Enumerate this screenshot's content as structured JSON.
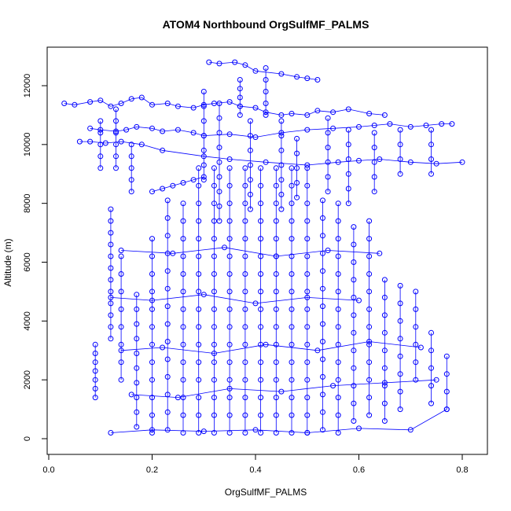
{
  "chart_data": {
    "type": "scatter",
    "title": "ATOM4 Northbound OrgSulfMF_PALMS",
    "xlabel": "OrgSulfMF_PALMS",
    "ylabel": "Altitude (m)",
    "xlim": [
      0.0,
      0.8
    ],
    "ylim": [
      0,
      12000
    ],
    "x_ticks": [
      0.0,
      0.2,
      0.4,
      0.6,
      0.8
    ],
    "x_tick_labels": [
      "0.0",
      "0.2",
      "0.4",
      "0.6",
      "0.8"
    ],
    "y_ticks": [
      0,
      2000,
      4000,
      6000,
      8000,
      10000,
      12000
    ],
    "y_tick_labels": [
      "0",
      "2000",
      "4000",
      "6000",
      "8000",
      "10000",
      "12000"
    ],
    "marker": "open-circle",
    "connect_points": true,
    "grid": false,
    "legend": "none",
    "color": "#0000ff",
    "series": [
      {
        "x": [
          0.03,
          0.05,
          0.08,
          0.1,
          0.12,
          0.14,
          0.16,
          0.18,
          0.2,
          0.23,
          0.25,
          0.28,
          0.3,
          0.32,
          0.35,
          0.37,
          0.4,
          0.42,
          0.45,
          0.47,
          0.5,
          0.52,
          0.55,
          0.58,
          0.62,
          0.65
        ],
        "y": [
          11400,
          11350,
          11450,
          11500,
          11300,
          11400,
          11550,
          11600,
          11350,
          11400,
          11300,
          11250,
          11350,
          11400,
          11450,
          11300,
          11250,
          11100,
          11000,
          11050,
          11000,
          11150,
          11100,
          11200,
          11050,
          11000
        ]
      },
      {
        "x": [
          0.31,
          0.33,
          0.36,
          0.38,
          0.4,
          0.45,
          0.48,
          0.5,
          0.52
        ],
        "y": [
          12800,
          12750,
          12800,
          12700,
          12500,
          12400,
          12300,
          12250,
          12200
        ]
      },
      {
        "x": [
          0.08,
          0.1,
          0.13,
          0.15,
          0.17,
          0.2,
          0.22,
          0.25,
          0.28,
          0.3,
          0.35,
          0.4,
          0.45,
          0.5,
          0.55,
          0.6,
          0.63,
          0.66,
          0.7,
          0.73,
          0.76,
          0.78
        ],
        "y": [
          10550,
          10500,
          10450,
          10500,
          10600,
          10550,
          10450,
          10500,
          10400,
          10300,
          10350,
          10250,
          10400,
          10500,
          10550,
          10600,
          10650,
          10700,
          10600,
          10650,
          10700,
          10700
        ]
      },
      {
        "x": [
          0.06,
          0.08,
          0.11,
          0.14,
          0.18,
          0.22,
          0.3,
          0.35,
          0.42,
          0.5,
          0.56,
          0.6,
          0.64,
          0.7,
          0.75,
          0.8
        ],
        "y": [
          10100,
          10100,
          10050,
          10100,
          10000,
          9800,
          9600,
          9500,
          9400,
          9300,
          9400,
          9450,
          9500,
          9400,
          9350,
          9400
        ]
      },
      {
        "x": [
          0.12,
          0.12,
          0.12,
          0.12,
          0.12,
          0.12,
          0.12,
          0.12,
          0.12,
          0.12,
          0.12,
          0.12
        ],
        "y": [
          3400,
          3800,
          4200,
          4600,
          5000,
          5400,
          5800,
          6200,
          6600,
          7000,
          7400,
          7800
        ]
      },
      {
        "x": [
          0.09,
          0.09,
          0.09,
          0.09,
          0.09,
          0.09,
          0.09
        ],
        "y": [
          1400,
          1700,
          2000,
          2300,
          2600,
          2900,
          3200
        ]
      },
      {
        "x": [
          0.14,
          0.14,
          0.14,
          0.14,
          0.14,
          0.14,
          0.14,
          0.14
        ],
        "y": [
          2000,
          2600,
          3200,
          3800,
          4400,
          5000,
          5600,
          6200
        ]
      },
      {
        "x": [
          0.17,
          0.17,
          0.17,
          0.17,
          0.17,
          0.17,
          0.17,
          0.17,
          0.17,
          0.17
        ],
        "y": [
          400,
          900,
          1400,
          1900,
          2400,
          2900,
          3400,
          3900,
          4400,
          4900
        ]
      },
      {
        "x": [
          0.2,
          0.2,
          0.2,
          0.2,
          0.2,
          0.2,
          0.2,
          0.2,
          0.2,
          0.2,
          0.2,
          0.2
        ],
        "y": [
          200,
          800,
          1400,
          2000,
          2600,
          3200,
          3800,
          4400,
          5000,
          5600,
          6200,
          6800
        ]
      },
      {
        "x": [
          0.23,
          0.23,
          0.23,
          0.23,
          0.23,
          0.23,
          0.23,
          0.23,
          0.23,
          0.23,
          0.23,
          0.23,
          0.23,
          0.23
        ],
        "y": [
          300,
          900,
          1500,
          2100,
          2700,
          3300,
          3900,
          4500,
          5100,
          5700,
          6300,
          6900,
          7500,
          8100
        ]
      },
      {
        "x": [
          0.26,
          0.26,
          0.26,
          0.26,
          0.26,
          0.26,
          0.26,
          0.26,
          0.26,
          0.26,
          0.26,
          0.26,
          0.26,
          0.26
        ],
        "y": [
          200,
          800,
          1400,
          2000,
          2600,
          3200,
          3800,
          4400,
          5000,
          5600,
          6200,
          6800,
          7400,
          8000
        ]
      },
      {
        "x": [
          0.29,
          0.29,
          0.29,
          0.29,
          0.29,
          0.29,
          0.29,
          0.29,
          0.29,
          0.29,
          0.29,
          0.29,
          0.29,
          0.29,
          0.29,
          0.29
        ],
        "y": [
          200,
          800,
          1400,
          2000,
          2600,
          3200,
          3800,
          4400,
          5000,
          5600,
          6200,
          6800,
          7400,
          8000,
          8600,
          9200
        ]
      },
      {
        "x": [
          0.32,
          0.32,
          0.32,
          0.32,
          0.32,
          0.32,
          0.32,
          0.32,
          0.32,
          0.32,
          0.32,
          0.32,
          0.32,
          0.32,
          0.32,
          0.32
        ],
        "y": [
          200,
          800,
          1400,
          2000,
          2600,
          3200,
          3800,
          4400,
          5000,
          5600,
          6200,
          6800,
          7400,
          8000,
          8600,
          9200
        ]
      },
      {
        "x": [
          0.35,
          0.35,
          0.35,
          0.35,
          0.35,
          0.35,
          0.35,
          0.35,
          0.35,
          0.35,
          0.35,
          0.35,
          0.35,
          0.35,
          0.35,
          0.35
        ],
        "y": [
          200,
          800,
          1400,
          2000,
          2600,
          3200,
          3800,
          4400,
          5000,
          5600,
          6200,
          6800,
          7400,
          8000,
          8600,
          9200
        ]
      },
      {
        "x": [
          0.38,
          0.38,
          0.38,
          0.38,
          0.38,
          0.38,
          0.38,
          0.38,
          0.38,
          0.38,
          0.38,
          0.38,
          0.38,
          0.38,
          0.38,
          0.38
        ],
        "y": [
          200,
          800,
          1400,
          2000,
          2600,
          3200,
          3800,
          4400,
          5000,
          5600,
          6200,
          6800,
          7400,
          8000,
          8600,
          9200
        ]
      },
      {
        "x": [
          0.41,
          0.41,
          0.41,
          0.41,
          0.41,
          0.41,
          0.41,
          0.41,
          0.41,
          0.41,
          0.41,
          0.41,
          0.41,
          0.41,
          0.41,
          0.41
        ],
        "y": [
          200,
          800,
          1400,
          2000,
          2600,
          3200,
          3800,
          4400,
          5000,
          5600,
          6200,
          6800,
          7400,
          8000,
          8600,
          9200
        ]
      },
      {
        "x": [
          0.44,
          0.44,
          0.44,
          0.44,
          0.44,
          0.44,
          0.44,
          0.44,
          0.44,
          0.44,
          0.44,
          0.44,
          0.44,
          0.44,
          0.44,
          0.44
        ],
        "y": [
          200,
          800,
          1400,
          2000,
          2600,
          3200,
          3800,
          4400,
          5000,
          5600,
          6200,
          6800,
          7400,
          8000,
          8600,
          9200
        ]
      },
      {
        "x": [
          0.47,
          0.47,
          0.47,
          0.47,
          0.47,
          0.47,
          0.47,
          0.47,
          0.47,
          0.47,
          0.47,
          0.47,
          0.47,
          0.47,
          0.47,
          0.47
        ],
        "y": [
          200,
          800,
          1400,
          2000,
          2600,
          3200,
          3800,
          4400,
          5000,
          5600,
          6200,
          6800,
          7400,
          8000,
          8600,
          9200
        ]
      },
      {
        "x": [
          0.5,
          0.5,
          0.5,
          0.5,
          0.5,
          0.5,
          0.5,
          0.5,
          0.5,
          0.5,
          0.5,
          0.5,
          0.5,
          0.5,
          0.5,
          0.5
        ],
        "y": [
          200,
          800,
          1400,
          2000,
          2600,
          3200,
          3800,
          4400,
          5000,
          5600,
          6200,
          6800,
          7400,
          8000,
          8600,
          9200
        ]
      },
      {
        "x": [
          0.53,
          0.53,
          0.53,
          0.53,
          0.53,
          0.53,
          0.53,
          0.53,
          0.53,
          0.53,
          0.53,
          0.53,
          0.53,
          0.53
        ],
        "y": [
          300,
          900,
          1500,
          2100,
          2700,
          3300,
          3900,
          4500,
          5100,
          5700,
          6300,
          6900,
          7500,
          8100
        ]
      },
      {
        "x": [
          0.56,
          0.56,
          0.56,
          0.56,
          0.56,
          0.56,
          0.56,
          0.56,
          0.56,
          0.56,
          0.56,
          0.56,
          0.56,
          0.56
        ],
        "y": [
          200,
          800,
          1400,
          2000,
          2600,
          3200,
          3800,
          4400,
          5000,
          5600,
          6200,
          6800,
          7400,
          8000
        ]
      },
      {
        "x": [
          0.59,
          0.59,
          0.59,
          0.59,
          0.59,
          0.59,
          0.59,
          0.59,
          0.59,
          0.59,
          0.59,
          0.59
        ],
        "y": [
          600,
          1200,
          1800,
          2400,
          3000,
          3600,
          4200,
          4800,
          5400,
          6000,
          6600,
          7200
        ]
      },
      {
        "x": [
          0.62,
          0.62,
          0.62,
          0.62,
          0.62,
          0.62,
          0.62,
          0.62,
          0.62,
          0.62,
          0.62,
          0.62
        ],
        "y": [
          800,
          1400,
          2000,
          2600,
          3200,
          3800,
          4400,
          5000,
          5600,
          6200,
          6800,
          7400
        ]
      },
      {
        "x": [
          0.65,
          0.65,
          0.65,
          0.65,
          0.65,
          0.65,
          0.65,
          0.65,
          0.65
        ],
        "y": [
          600,
          1200,
          1800,
          2400,
          3000,
          3600,
          4200,
          4800,
          5400
        ]
      },
      {
        "x": [
          0.68,
          0.68,
          0.68,
          0.68,
          0.68,
          0.68,
          0.68,
          0.68
        ],
        "y": [
          1000,
          1600,
          2200,
          2800,
          3400,
          4000,
          4600,
          5200
        ]
      },
      {
        "x": [
          0.71,
          0.71,
          0.71,
          0.71,
          0.71,
          0.71
        ],
        "y": [
          2000,
          2600,
          3200,
          3800,
          4400,
          5000
        ]
      },
      {
        "x": [
          0.74,
          0.74,
          0.74,
          0.74,
          0.74
        ],
        "y": [
          1200,
          1800,
          2400,
          3000,
          3600
        ]
      },
      {
        "x": [
          0.77,
          0.77,
          0.77,
          0.77
        ],
        "y": [
          1000,
          1600,
          2200,
          2800
        ]
      },
      {
        "x": [
          0.48,
          0.48,
          0.48,
          0.48,
          0.48
        ],
        "y": [
          8200,
          8700,
          9200,
          9700,
          10200
        ]
      },
      {
        "x": [
          0.45,
          0.45,
          0.45,
          0.45,
          0.45,
          0.45,
          0.45
        ],
        "y": [
          7800,
          8300,
          8800,
          9300,
          9800,
          10300,
          10800
        ]
      },
      {
        "x": [
          0.39,
          0.39,
          0.39,
          0.39,
          0.39,
          0.39,
          0.39
        ],
        "y": [
          7800,
          8300,
          8800,
          9300,
          9800,
          10300,
          10800
        ]
      },
      {
        "x": [
          0.33,
          0.33,
          0.33,
          0.33,
          0.33,
          0.33,
          0.33,
          0.33,
          0.33
        ],
        "y": [
          7400,
          7900,
          8400,
          8900,
          9400,
          9900,
          10400,
          10900,
          11400
        ]
      },
      {
        "x": [
          0.3,
          0.3,
          0.3,
          0.3,
          0.3,
          0.3,
          0.3
        ],
        "y": [
          8800,
          9300,
          9800,
          10300,
          10800,
          11300,
          11800
        ]
      },
      {
        "x": [
          0.58,
          0.58,
          0.58,
          0.58,
          0.58,
          0.58
        ],
        "y": [
          8000,
          8500,
          9000,
          9500,
          10000,
          10500
        ]
      },
      {
        "x": [
          0.54,
          0.54,
          0.54,
          0.54,
          0.54,
          0.54
        ],
        "y": [
          8400,
          8900,
          9400,
          9900,
          10400,
          10900
        ]
      },
      {
        "x": [
          0.63,
          0.63,
          0.63,
          0.63,
          0.63
        ],
        "y": [
          8400,
          8900,
          9400,
          9900,
          10400
        ]
      },
      {
        "x": [
          0.68,
          0.68,
          0.68,
          0.68
        ],
        "y": [
          9000,
          9500,
          10000,
          10500
        ]
      },
      {
        "x": [
          0.74,
          0.74,
          0.74,
          0.74
        ],
        "y": [
          9000,
          9500,
          10000,
          10500
        ]
      },
      {
        "x": [
          0.2,
          0.22,
          0.24,
          0.26,
          0.28,
          0.3
        ],
        "y": [
          8400,
          8500,
          8600,
          8700,
          8800,
          8900
        ]
      },
      {
        "x": [
          0.16,
          0.16,
          0.16,
          0.16,
          0.16
        ],
        "y": [
          8400,
          8800,
          9200,
          9600,
          10000
        ]
      },
      {
        "x": [
          0.1,
          0.1,
          0.1,
          0.1,
          0.1
        ],
        "y": [
          9200,
          9600,
          10000,
          10400,
          10800
        ]
      },
      {
        "x": [
          0.13,
          0.13,
          0.13,
          0.13,
          0.13,
          0.13
        ],
        "y": [
          9200,
          9600,
          10000,
          10400,
          10800,
          11200
        ]
      },
      {
        "x": [
          0.42,
          0.42,
          0.42,
          0.42,
          0.42
        ],
        "y": [
          11000,
          11400,
          11800,
          12200,
          12600
        ]
      },
      {
        "x": [
          0.37,
          0.37,
          0.37,
          0.37,
          0.37
        ],
        "y": [
          11000,
          11300,
          11600,
          11900,
          12200
        ]
      },
      {
        "x": [
          0.12,
          0.2,
          0.3,
          0.4,
          0.5,
          0.6,
          0.7,
          0.77
        ],
        "y": [
          200,
          300,
          250,
          300,
          200,
          350,
          300,
          1000
        ]
      },
      {
        "x": [
          0.16,
          0.25,
          0.35,
          0.45,
          0.55,
          0.65,
          0.75
        ],
        "y": [
          1500,
          1400,
          1700,
          1600,
          1800,
          1900,
          2000
        ]
      },
      {
        "x": [
          0.14,
          0.22,
          0.32,
          0.42,
          0.52,
          0.62,
          0.72
        ],
        "y": [
          3000,
          3100,
          2900,
          3200,
          3000,
          3300,
          3100
        ]
      },
      {
        "x": [
          0.12,
          0.2,
          0.3,
          0.4,
          0.5,
          0.6
        ],
        "y": [
          4800,
          4700,
          4900,
          4600,
          4800,
          4700
        ]
      },
      {
        "x": [
          0.14,
          0.24,
          0.34,
          0.44,
          0.54,
          0.64
        ],
        "y": [
          6400,
          6300,
          6500,
          6200,
          6400,
          6300
        ]
      }
    ]
  }
}
